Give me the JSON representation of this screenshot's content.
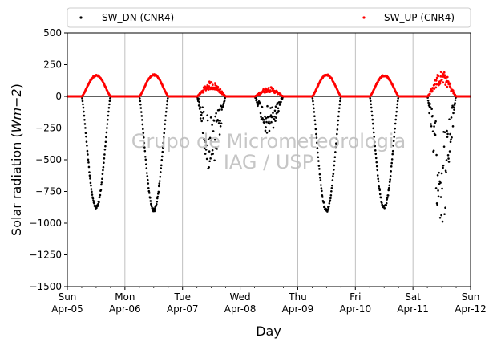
{
  "chart_data": {
    "type": "scatter",
    "xlabel": "Day",
    "ylabel": "Solar radiation (Wm−2)",
    "ylabel_main": "Solar radiation (",
    "ylabel_unit": "Wm−2",
    "ylabel_close": ")",
    "ylim": [
      -1500,
      500
    ],
    "yticks": [
      500,
      250,
      0,
      -250,
      -500,
      -750,
      -1000,
      -1250,
      -1500
    ],
    "ytick_labels": [
      "500",
      "250",
      "0",
      "−250",
      "−500",
      "−750",
      "−1000",
      "−1250",
      "−1500"
    ],
    "xlim": [
      0,
      7
    ],
    "xticks": [
      {
        "pos": 0,
        "day": "Sun",
        "date": "Apr-05"
      },
      {
        "pos": 1,
        "day": "Mon",
        "date": "Apr-06"
      },
      {
        "pos": 2,
        "day": "Tue",
        "date": "Apr-07"
      },
      {
        "pos": 3,
        "day": "Wed",
        "date": "Apr-08"
      },
      {
        "pos": 4,
        "day": "Thu",
        "date": "Apr-09"
      },
      {
        "pos": 5,
        "day": "Fri",
        "date": "Apr-10"
      },
      {
        "pos": 6,
        "day": "Sat",
        "date": "Apr-11"
      },
      {
        "pos": 7,
        "day": "Sun",
        "date": "Apr-12"
      }
    ],
    "grid": "x",
    "legend_position": "top",
    "zero_line": true,
    "series": [
      {
        "name": "SW_DN (CNR4)",
        "color": "#000000",
        "daily_minimum": [
          -890,
          -910,
          -620,
          -310,
          -915,
          -890,
          -1020
        ]
      },
      {
        "name": "SW_UP (CNR4)",
        "color": "#ff0000",
        "daily_maximum": [
          170,
          175,
          120,
          75,
          175,
          170,
          200
        ]
      }
    ],
    "daylight_hours": [
      6,
      18
    ],
    "days_cloudy": [
      false,
      false,
      true,
      true,
      false,
      false,
      true
    ]
  },
  "watermark": {
    "line1": "Grupo de Micrometeorologia",
    "line2": "IAG / USP"
  }
}
